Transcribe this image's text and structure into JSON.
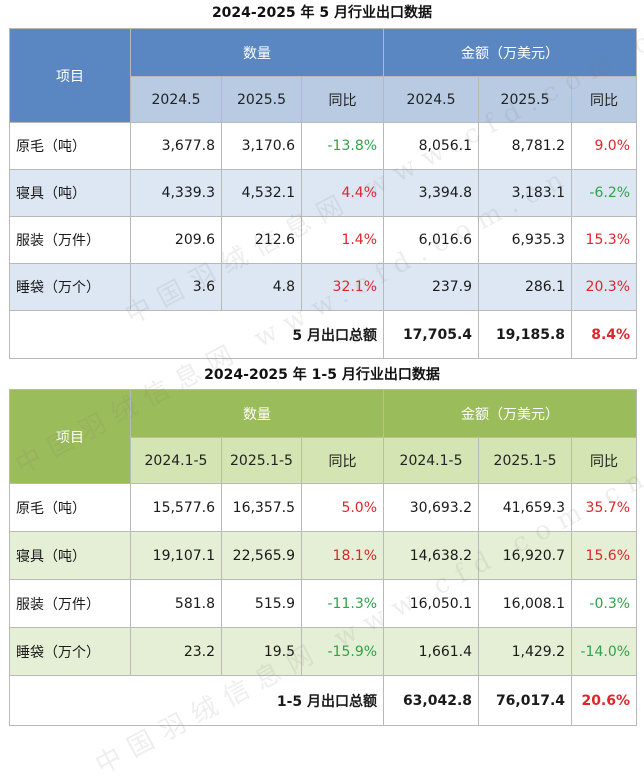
{
  "table1": {
    "title": "2024-2025 年 5 月行业出口数据",
    "header": {
      "item": "项目",
      "qty": "数量",
      "amount": "金额（万美元）",
      "cols": [
        "2024.5",
        "2025.5",
        "同比",
        "2024.5",
        "2025.5",
        "同比"
      ]
    },
    "rows": [
      {
        "label": "原毛（吨）",
        "q1": "3,677.8",
        "q2": "3,170.6",
        "qy": "-13.8%",
        "a1": "8,056.1",
        "a2": "8,781.2",
        "ay": "9.0%"
      },
      {
        "label": "寝具（吨）",
        "q1": "4,339.3",
        "q2": "4,532.1",
        "qy": "4.4%",
        "a1": "3,394.8",
        "a2": "3,183.1",
        "ay": "-6.2%"
      },
      {
        "label": "服装（万件）",
        "q1": "209.6",
        "q2": "212.6",
        "qy": "1.4%",
        "a1": "6,016.6",
        "a2": "6,935.3",
        "ay": "15.3%"
      },
      {
        "label": "睡袋（万个）",
        "q1": "3.6",
        "q2": "4.8",
        "qy": "32.1%",
        "a1": "237.9",
        "a2": "286.1",
        "ay": "20.3%"
      }
    ],
    "total": {
      "label": "5 月出口总额",
      "a1": "17,705.4",
      "a2": "19,185.8",
      "ay": "8.4%"
    }
  },
  "table2": {
    "title": "2024-2025 年 1-5 月行业出口数据",
    "header": {
      "item": "项目",
      "qty": "数量",
      "amount": "金额（万美元）",
      "cols": [
        "2024.1-5",
        "2025.1-5",
        "同比",
        "2024.1-5",
        "2025.1-5",
        "同比"
      ]
    },
    "rows": [
      {
        "label": "原毛（吨）",
        "q1": "15,577.6",
        "q2": "16,357.5",
        "qy": "5.0%",
        "a1": "30,693.2",
        "a2": "41,659.3",
        "ay": "35.7%"
      },
      {
        "label": "寝具（吨）",
        "q1": "19,107.1",
        "q2": "22,565.9",
        "qy": "18.1%",
        "a1": "14,638.2",
        "a2": "16,920.7",
        "ay": "15.6%"
      },
      {
        "label": "服装（万件）",
        "q1": "581.8",
        "q2": "515.9",
        "qy": "-11.3%",
        "a1": "16,050.1",
        "a2": "16,008.1",
        "ay": "-0.3%"
      },
      {
        "label": "睡袋（万个）",
        "q1": "23.2",
        "q2": "19.5",
        "qy": "-15.9%",
        "a1": "1,661.4",
        "a2": "1,429.2",
        "ay": "-14.0%"
      }
    ],
    "total": {
      "label": "1-5 月出口总额",
      "a1": "63,042.8",
      "a2": "76,017.4",
      "ay": "20.6%"
    }
  },
  "watermark": "中国羽绒信息网 www.cfd.com.cn",
  "colors": {
    "header_blue": "#5a87c2",
    "subheader_blue": "#b9cbe3",
    "header_green": "#9bbc5a",
    "subheader_green": "#d4e4b3",
    "positive": "#e0252b",
    "negative": "#2fa24a"
  }
}
